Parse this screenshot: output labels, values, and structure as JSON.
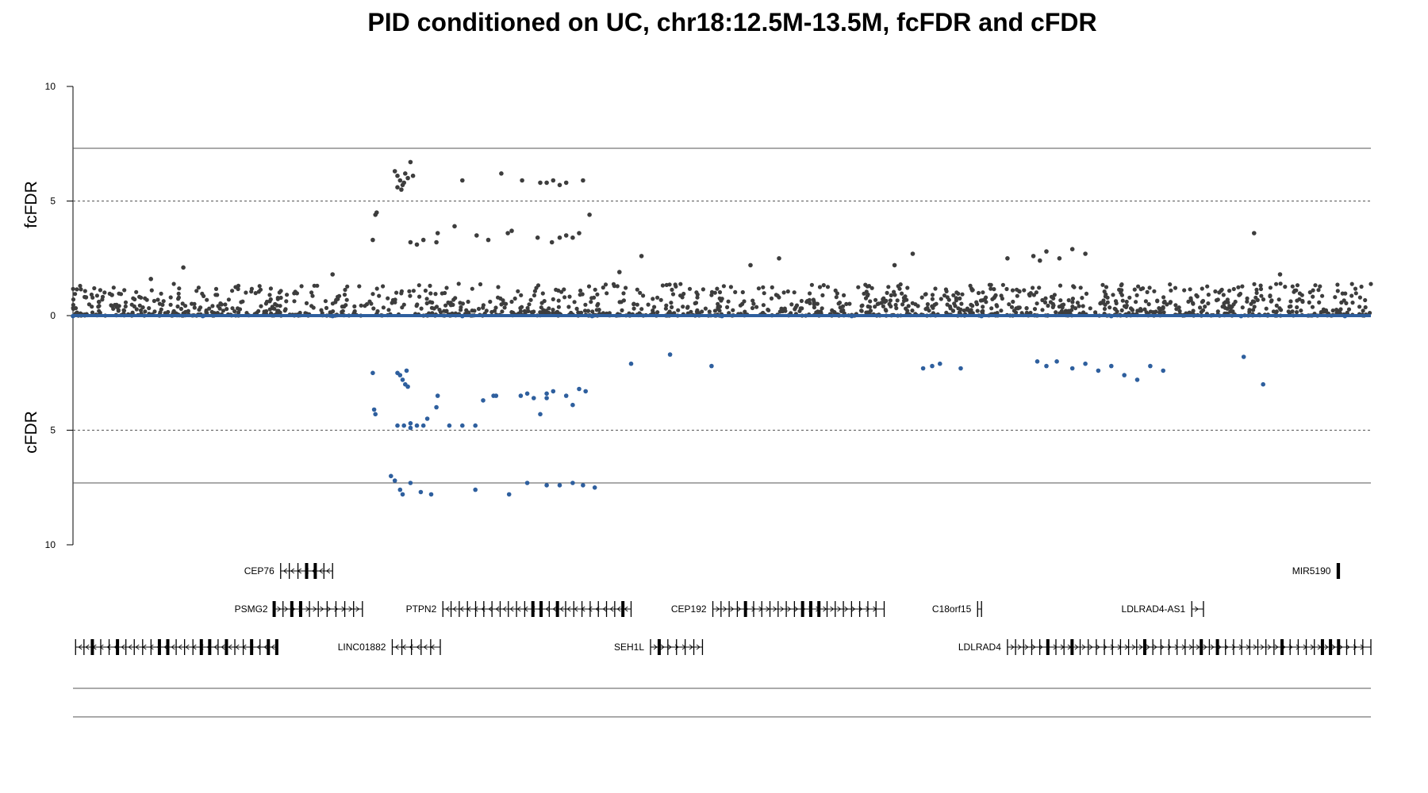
{
  "chart_data": {
    "type": "scatter",
    "title": "PID conditioned on UC, chr18:12.5M-13.5M, fcFDR and cFDR",
    "ylabel_top": "fcFDR",
    "ylabel_bottom": "cFDR",
    "xlim": [
      12.5,
      13.5
    ],
    "ylim_top": [
      0,
      10
    ],
    "ylim_bottom": [
      0,
      10
    ],
    "y_tick_labels": [
      "10",
      "5",
      "0",
      "5",
      "10"
    ],
    "reference_lines": {
      "solid": 7.3,
      "dashed": 5
    },
    "colors": {
      "fcfdr_points": "#3d3d3d",
      "cfdr_points": "#2e5f9e",
      "lines": "#555555"
    },
    "series": [
      {
        "name": "fcFDR",
        "x": [
          12.748,
          12.75,
          12.752,
          12.754,
          12.756,
          12.758,
          12.75,
          12.755,
          12.762,
          12.753,
          12.76,
          12.733,
          12.734,
          12.731,
          12.76,
          12.765,
          12.77,
          12.78,
          12.794,
          12.781,
          12.811,
          12.82,
          12.838,
          12.835,
          12.858,
          12.869,
          12.875,
          12.88,
          12.885,
          12.89,
          12.865,
          12.87,
          12.875,
          12.88,
          12.893,
          12.846,
          12.8,
          12.83,
          12.86,
          12.898,
          12.921,
          12.938,
          13.022,
          13.044,
          13.133,
          13.147,
          13.22,
          13.245,
          13.24,
          13.25,
          13.26,
          13.27,
          13.28,
          13.41,
          13.43,
          12.56,
          12.585,
          12.7,
          12.51,
          12.52,
          12.53
        ],
        "y": [
          6.3,
          6.1,
          5.9,
          5.7,
          6.2,
          6.0,
          5.6,
          5.8,
          6.1,
          5.5,
          6.7,
          4.4,
          4.5,
          3.3,
          3.2,
          3.1,
          3.3,
          3.2,
          3.9,
          3.6,
          3.5,
          3.3,
          3.7,
          3.6,
          3.4,
          3.2,
          3.4,
          3.5,
          3.4,
          3.6,
          5.8,
          5.9,
          5.7,
          5.8,
          5.9,
          5.9,
          5.9,
          6.2,
          5.8,
          4.4,
          1.9,
          2.6,
          2.2,
          2.5,
          2.2,
          2.7,
          2.5,
          2.4,
          2.6,
          2.8,
          2.5,
          2.9,
          2.7,
          3.6,
          1.8,
          1.6,
          2.1,
          1.8,
          0.8,
          0.6,
          0.9
        ]
      },
      {
        "name": "cFDR",
        "x": [
          12.731,
          12.732,
          12.733,
          12.75,
          12.752,
          12.754,
          12.756,
          12.758,
          12.76,
          12.75,
          12.755,
          12.76,
          12.765,
          12.77,
          12.79,
          12.8,
          12.81,
          12.78,
          12.773,
          12.781,
          12.757,
          12.816,
          12.824,
          12.826,
          12.845,
          12.85,
          12.855,
          12.86,
          12.865,
          12.87,
          12.88,
          12.885,
          12.89,
          12.895,
          12.865,
          12.745,
          12.748,
          12.752,
          12.754,
          12.76,
          12.768,
          12.776,
          12.81,
          12.836,
          12.85,
          12.865,
          12.875,
          12.885,
          12.893,
          12.902,
          12.93,
          12.96,
          12.992,
          13.155,
          13.162,
          13.168,
          13.184,
          13.243,
          13.25,
          13.258,
          13.27,
          13.28,
          13.29,
          13.3,
          13.31,
          13.32,
          13.33,
          13.34,
          13.402,
          13.417,
          12.5,
          12.6,
          12.7,
          12.8,
          12.9,
          13.0,
          13.1,
          13.2,
          13.3,
          13.4,
          13.48
        ],
        "y": [
          2.5,
          4.1,
          4.3,
          2.5,
          2.6,
          2.8,
          3.0,
          3.1,
          4.7,
          4.8,
          4.8,
          4.9,
          4.8,
          4.8,
          4.8,
          4.8,
          4.8,
          4.0,
          4.5,
          3.5,
          2.4,
          3.7,
          3.5,
          3.5,
          3.5,
          3.4,
          3.6,
          4.3,
          3.4,
          3.3,
          3.5,
          3.9,
          3.2,
          3.3,
          3.6,
          7.0,
          7.2,
          7.6,
          7.8,
          7.3,
          7.7,
          7.8,
          7.6,
          7.8,
          7.3,
          7.4,
          7.4,
          7.3,
          7.4,
          7.5,
          2.1,
          1.7,
          2.2,
          2.3,
          2.2,
          2.1,
          2.3,
          2.0,
          2.2,
          2.0,
          2.3,
          2.1,
          2.4,
          2.2,
          2.6,
          2.8,
          2.2,
          2.4,
          1.8,
          3.0,
          0.02,
          0.02,
          0.02,
          0.02,
          0.02,
          0.02,
          0.02,
          0.02,
          0.02,
          0.02,
          0.02
        ]
      }
    ]
  },
  "genes": [
    {
      "name": "CEP76",
      "start": 12.66,
      "end": 12.7,
      "row": 0,
      "strand": "-"
    },
    {
      "name": "MIR5190",
      "start": 13.474,
      "end": 13.475,
      "row": 0,
      "strand": "+"
    },
    {
      "name": "PSMG2",
      "start": 12.655,
      "end": 12.723,
      "row": 1,
      "strand": "+"
    },
    {
      "name": "PTPN2",
      "start": 12.785,
      "end": 12.93,
      "row": 1,
      "strand": "-"
    },
    {
      "name": "CEP192",
      "start": 12.993,
      "end": 13.125,
      "row": 1,
      "strand": "+"
    },
    {
      "name": "C18orf15",
      "start": 13.197,
      "end": 13.2,
      "row": 1,
      "strand": "+"
    },
    {
      "name": "LDLRAD4-AS1",
      "start": 13.362,
      "end": 13.371,
      "row": 1,
      "strand": "+"
    },
    {
      "name": "",
      "start": 12.502,
      "end": 12.657,
      "row": 2,
      "strand": "-"
    },
    {
      "name": "LINC01882",
      "start": 12.746,
      "end": 12.783,
      "row": 2,
      "strand": "-"
    },
    {
      "name": "SEH1L",
      "start": 12.945,
      "end": 12.985,
      "row": 2,
      "strand": "+"
    },
    {
      "name": "LDLRAD4",
      "start": 13.22,
      "end": 13.5,
      "row": 2,
      "strand": "+"
    }
  ]
}
